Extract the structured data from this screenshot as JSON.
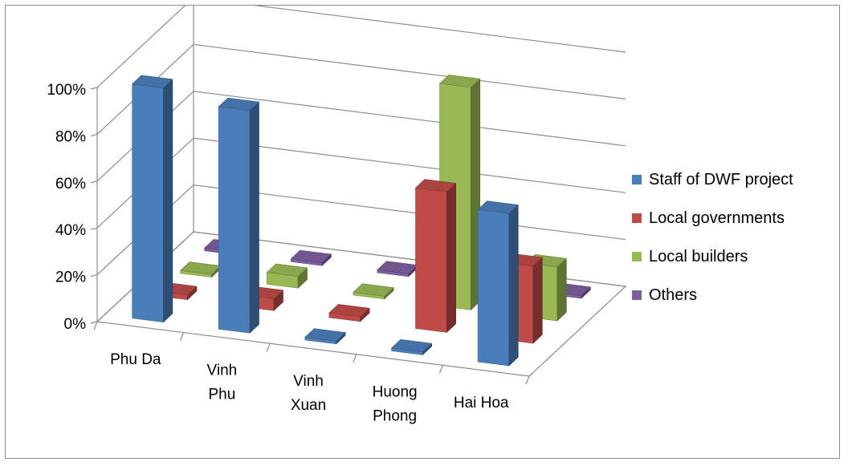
{
  "chart_data": {
    "type": "bar",
    "variant": "3d-clustered-depth",
    "categories": [
      "Phu Da",
      "Vinh Phu",
      "Vinh Xuan",
      "Huong Phong",
      "Hai Hoa"
    ],
    "category_lines": [
      [
        "Phu Da"
      ],
      [
        "Vinh",
        "Phu"
      ],
      [
        "Vinh",
        "Xuan"
      ],
      [
        "Huong",
        "Phong"
      ],
      [
        "Hai Hoa"
      ]
    ],
    "series": [
      {
        "name": "Staff of DWF project",
        "color": "#4a7ebb",
        "values": [
          100,
          95,
          0,
          0,
          65
        ]
      },
      {
        "name": "Local governments",
        "color": "#be4b48",
        "values": [
          2,
          5,
          2,
          60,
          33
        ]
      },
      {
        "name": "Local builders",
        "color": "#98b954",
        "values": [
          0,
          5,
          0,
          95,
          23
        ]
      },
      {
        "name": "Others",
        "color": "#7d60a0",
        "values": [
          0,
          0,
          0,
          0,
          0
        ]
      }
    ],
    "yticks": [
      "0%",
      "20%",
      "40%",
      "60%",
      "80%",
      "100%"
    ],
    "ylim": [
      0,
      100
    ],
    "legend_position": "right",
    "grid": true
  }
}
